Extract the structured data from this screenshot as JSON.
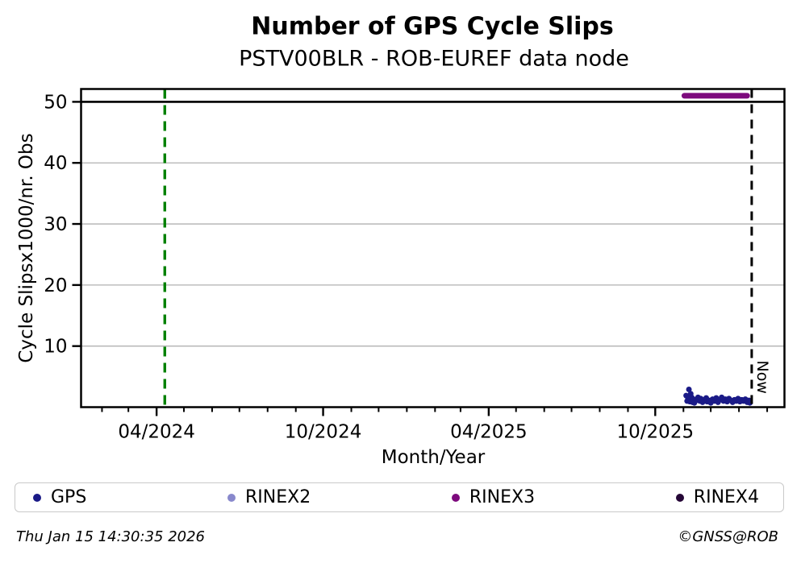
{
  "header": {
    "title": "Number of GPS Cycle Slips",
    "subtitle": "PSTV00BLR - ROB-EUREF data node"
  },
  "footer": {
    "timestamp": "Thu Jan 15 14:30:35 2026",
    "copyright": "©GNSS@ROB"
  },
  "chart_data": {
    "type": "scatter",
    "title": "Number of GPS Cycle Slips",
    "subtitle": "PSTV00BLR - ROB-EUREF data node",
    "xlabel": "Month/Year",
    "ylabel": "Cycle Slipsx1000/nr. Obs",
    "ylim": [
      0,
      52.1
    ],
    "xlim": [
      "2024-01-09",
      "2026-02-20"
    ],
    "y_ticks": [
      10,
      20,
      30,
      40,
      50
    ],
    "x_major_ticks": [
      {
        "date": "2024-04-01",
        "label": "04/2024"
      },
      {
        "date": "2024-10-01",
        "label": "10/2024"
      },
      {
        "date": "2025-04-01",
        "label": "04/2025"
      },
      {
        "date": "2025-10-01",
        "label": "10/2025"
      }
    ],
    "x_minor_ticks": [
      "2024-02-01",
      "2024-03-01",
      "2024-04-01",
      "2024-05-01",
      "2024-06-01",
      "2024-07-01",
      "2024-08-01",
      "2024-09-01",
      "2024-10-01",
      "2024-11-01",
      "2024-12-01",
      "2025-01-01",
      "2025-02-01",
      "2025-03-01",
      "2025-04-01",
      "2025-05-01",
      "2025-06-01",
      "2025-07-01",
      "2025-08-01",
      "2025-09-01",
      "2025-10-01",
      "2025-11-01",
      "2025-12-01",
      "2026-01-01",
      "2026-02-01"
    ],
    "grid": {
      "y_values": [
        10,
        20,
        30,
        40
      ],
      "color": "#b0b0b0"
    },
    "annotations": {
      "hline_50": {
        "y": 50,
        "color": "#000000",
        "style": "solid"
      },
      "event_line": {
        "date": "2024-04-10",
        "color": "#008000",
        "style": "dashed"
      },
      "now_line": {
        "date": "2026-01-15",
        "label": "Now",
        "color": "#000000",
        "style": "dashed"
      }
    },
    "series": [
      {
        "name": "GPS",
        "color": "#1a1a87",
        "type": "scatter",
        "points": [
          [
            "2025-11-04",
            1.9
          ],
          [
            "2025-11-05",
            1.0
          ],
          [
            "2025-11-06",
            1.5
          ],
          [
            "2025-11-07",
            2.9
          ],
          [
            "2025-11-08",
            0.9
          ],
          [
            "2025-11-09",
            2.2
          ],
          [
            "2025-11-10",
            1.6
          ],
          [
            "2025-11-11",
            0.8
          ],
          [
            "2025-11-12",
            1.3
          ],
          [
            "2025-11-13",
            0.7
          ],
          [
            "2025-11-15",
            1.1
          ],
          [
            "2025-11-17",
            1.6
          ],
          [
            "2025-11-19",
            1.0
          ],
          [
            "2025-11-20",
            1.4
          ],
          [
            "2025-11-22",
            0.8
          ],
          [
            "2025-11-24",
            1.2
          ],
          [
            "2025-11-26",
            1.5
          ],
          [
            "2025-11-27",
            0.9
          ],
          [
            "2025-11-29",
            1.1
          ],
          [
            "2025-12-01",
            0.7
          ],
          [
            "2025-12-03",
            1.3
          ],
          [
            "2025-12-05",
            1.0
          ],
          [
            "2025-12-07",
            1.5
          ],
          [
            "2025-12-09",
            0.8
          ],
          [
            "2025-12-11",
            1.2
          ],
          [
            "2025-12-13",
            1.6
          ],
          [
            "2025-12-15",
            1.0
          ],
          [
            "2025-12-17",
            1.3
          ],
          [
            "2025-12-19",
            0.9
          ],
          [
            "2025-12-21",
            1.4
          ],
          [
            "2025-12-23",
            1.1
          ],
          [
            "2025-12-25",
            0.8
          ],
          [
            "2025-12-27",
            1.2
          ],
          [
            "2025-12-29",
            1.0
          ],
          [
            "2025-12-31",
            1.4
          ],
          [
            "2026-01-02",
            0.9
          ],
          [
            "2026-01-04",
            1.2
          ],
          [
            "2026-01-06",
            1.0
          ],
          [
            "2026-01-08",
            1.3
          ],
          [
            "2026-01-10",
            0.8
          ],
          [
            "2026-01-12",
            1.1
          ],
          [
            "2026-01-13",
            0.7
          ]
        ]
      },
      {
        "name": "RINEX2",
        "color": "#8888cc",
        "type": "scatter",
        "points": []
      },
      {
        "name": "RINEX3",
        "color": "#7d0a7d",
        "type": "segment",
        "value": 51,
        "start": "2025-11-02",
        "end": "2026-01-10"
      },
      {
        "name": "RINEX4",
        "color": "#250636",
        "type": "scatter",
        "points": []
      }
    ],
    "legend": {
      "position": "bottom",
      "entries": [
        "GPS",
        "RINEX2",
        "RINEX3",
        "RINEX4"
      ]
    }
  }
}
